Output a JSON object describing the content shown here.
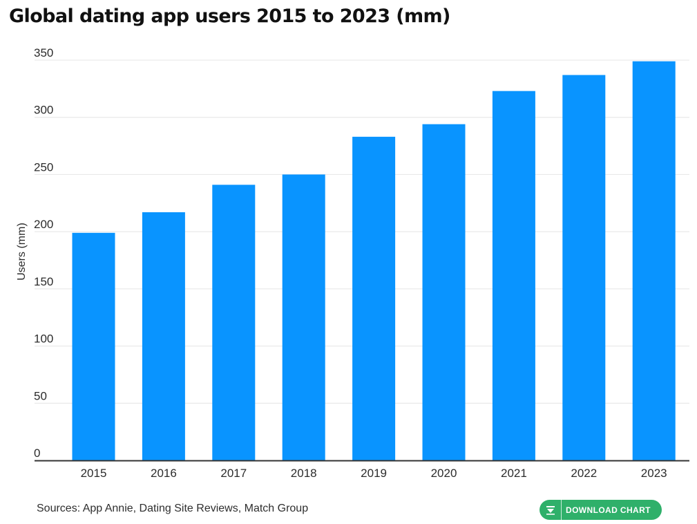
{
  "colors": {
    "bar": "#0994ff",
    "grid": "#e4e4e4",
    "baseline": "#333333",
    "button": "#2fb06a"
  },
  "chart_data": {
    "type": "bar",
    "title": "Global dating app users 2015 to 2023 (mm)",
    "xlabel": "",
    "ylabel": "Users (mm)",
    "categories": [
      "2015",
      "2016",
      "2017",
      "2018",
      "2019",
      "2020",
      "2021",
      "2022",
      "2023"
    ],
    "values": [
      199,
      217,
      241,
      250,
      283,
      294,
      323,
      337,
      349
    ],
    "ylim": [
      0,
      350
    ],
    "yticks": [
      0,
      50,
      100,
      150,
      200,
      250,
      300,
      350
    ],
    "grid": true,
    "legend": "none"
  },
  "footer": {
    "sources": "Sources: App Annie, Dating Site Reviews, Match Group",
    "download_label": "DOWNLOAD CHART",
    "download_icon": "download-icon"
  }
}
